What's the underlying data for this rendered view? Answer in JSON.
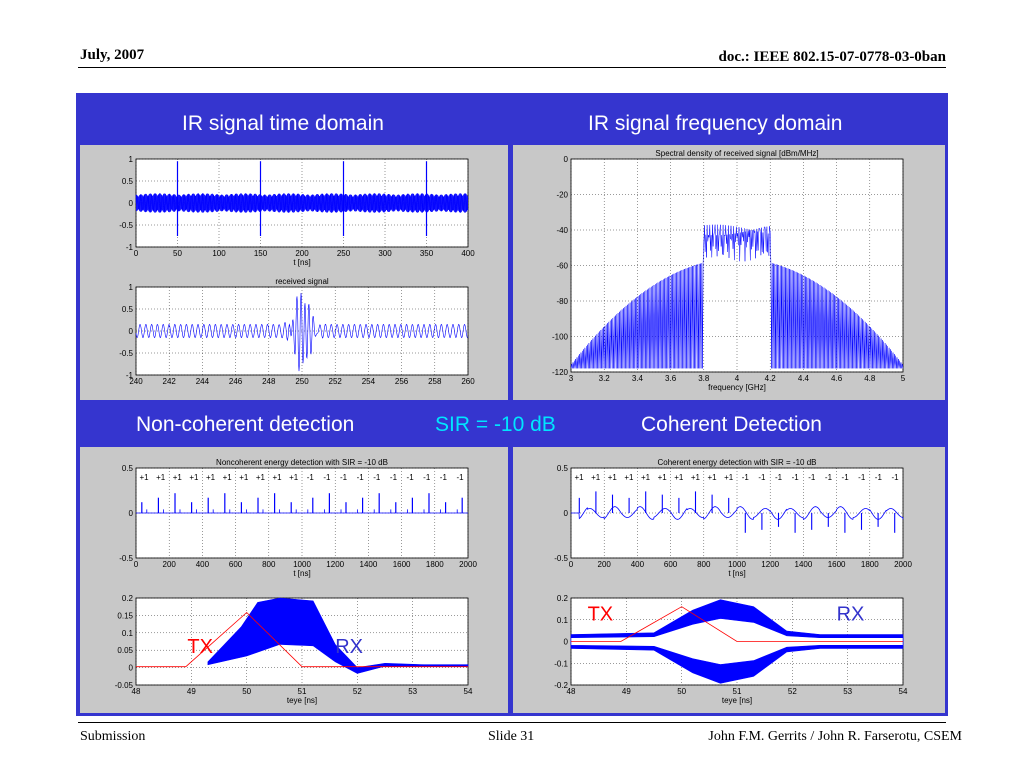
{
  "slide": {
    "header_left": "July, 2007",
    "header_right": "doc.: IEEE 802.15-07-0778-03-0ban",
    "footer_left": "Submission",
    "footer_center": "Slide 31",
    "footer_right": "John F.M. Gerrits / John R. Farserotu, CSEM"
  },
  "captions": {
    "time_domain": "IR signal time domain",
    "freq_domain": "IR signal frequency domain",
    "noncoherent": "Non-coherent detection",
    "sir": "SIR = -10 dB",
    "coherent": "Coherent Detection"
  },
  "colors": {
    "panel": "#3535cf",
    "signal": "#0000ff",
    "tx": "#ff0000",
    "rx": "#3333cc",
    "sir": "#00e5ff"
  },
  "chart_data": [
    {
      "id": "time",
      "type": "line",
      "title": "",
      "xlabel": "t [ns]",
      "xlim": [
        0,
        400
      ],
      "ylim": [
        -1,
        1
      ],
      "xticks": [
        "0",
        "50",
        "100",
        "150",
        "200",
        "250",
        "300",
        "350",
        "400"
      ],
      "yticks": [
        "1",
        "0.5",
        "0",
        "-0.5",
        "-1"
      ],
      "series": [
        {
          "pulse_times_ns": [
            50,
            150,
            250,
            350
          ],
          "pulse_amplitude": 1,
          "interference_amplitude": 0.22
        }
      ]
    },
    {
      "id": "received",
      "type": "line",
      "title": "received signal",
      "xlabel": "",
      "xlim": [
        240,
        260
      ],
      "ylim": [
        -1,
        1
      ],
      "xticks": [
        "240",
        "242",
        "244",
        "246",
        "248",
        "250",
        "252",
        "254",
        "256",
        "258",
        "260"
      ],
      "yticks": [
        "1",
        "0.5",
        "0",
        "-0.5",
        "-1"
      ],
      "series": [
        {
          "pulse_center_ns": 250,
          "pulse_amplitude": 0.85,
          "interference_amplitude": 0.15
        }
      ]
    },
    {
      "id": "spectrum",
      "type": "line",
      "title": "Spectral density of received signal [dBm/MHz]",
      "xlabel": "frequency [GHz]",
      "xlim": [
        3,
        5
      ],
      "ylim": [
        -120,
        0
      ],
      "xticks": [
        "3",
        "3.2",
        "3.4",
        "3.6",
        "3.8",
        "4",
        "4.2",
        "4.4",
        "4.6",
        "4.8",
        "5"
      ],
      "yticks": [
        "0",
        "-20",
        "-40",
        "-60",
        "-80",
        "-100",
        "-120"
      ],
      "series": [
        {
          "band_ghz": [
            3.8,
            4.2
          ],
          "band_level_dbm": -40,
          "sidelobe_peak_dbm": -56
        }
      ]
    },
    {
      "id": "noncoherent",
      "type": "line",
      "title": "Noncoherent energy detection with SIR = -10 dB",
      "xlabel": "t [ns]",
      "xlim": [
        0,
        2000
      ],
      "ylim": [
        -0.5,
        0.5
      ],
      "xticks": [
        "0",
        "200",
        "400",
        "600",
        "800",
        "1000",
        "1200",
        "1400",
        "1600",
        "1800",
        "2000"
      ],
      "yticks": [
        "0.5",
        "0",
        "-0.5"
      ],
      "symbols": [
        "+1",
        "+1",
        "+1",
        "+1",
        "+1",
        "+1",
        "+1",
        "+1",
        "+1",
        "+1",
        "-1",
        "-1",
        "-1",
        "-1",
        "-1",
        "-1",
        "-1",
        "-1",
        "-1",
        "-1"
      ]
    },
    {
      "id": "coherent",
      "type": "line",
      "title": "Coherent energy detection with SIR = -10 dB",
      "xlabel": "t [ns]",
      "xlim": [
        0,
        2000
      ],
      "ylim": [
        -0.5,
        0.5
      ],
      "xticks": [
        "0",
        "200",
        "400",
        "600",
        "800",
        "1000",
        "1200",
        "1400",
        "1600",
        "1800",
        "2000"
      ],
      "yticks": [
        "0.5",
        "0",
        "-0.5"
      ],
      "symbols": [
        "+1",
        "+1",
        "+1",
        "+1",
        "+1",
        "+1",
        "+1",
        "+1",
        "+1",
        "+1",
        "-1",
        "-1",
        "-1",
        "-1",
        "-1",
        "-1",
        "-1",
        "-1",
        "-1",
        "-1"
      ]
    },
    {
      "id": "eye_nc",
      "type": "line",
      "title": "",
      "xlabel": "teye [ns]",
      "xlim": [
        48,
        54
      ],
      "ylim": [
        -0.05,
        0.25
      ],
      "xticks": [
        "48",
        "49",
        "50",
        "51",
        "52",
        "53",
        "54"
      ],
      "yticks": [
        "0.2",
        "0.15",
        "0.1",
        "0.05",
        "0",
        "-0.05"
      ],
      "tx_label": "TX",
      "rx_label": "RX",
      "tx_points": [
        [
          48,
          0.013
        ],
        [
          48.9,
          0.013
        ],
        [
          50,
          0.2
        ],
        [
          51,
          0.013
        ],
        [
          54,
          0.013
        ]
      ],
      "envelope_upper": [
        [
          49.3,
          0.03
        ],
        [
          49.9,
          0.15
        ],
        [
          50.2,
          0.235
        ],
        [
          50.6,
          0.25
        ],
        [
          51.2,
          0.24
        ],
        [
          51.6,
          0.09
        ],
        [
          52,
          0.01
        ],
        [
          52.5,
          0.025
        ],
        [
          53.2,
          0.02
        ],
        [
          54,
          0.02
        ]
      ],
      "envelope_lower": [
        [
          49.3,
          0.02
        ],
        [
          50,
          0.05
        ],
        [
          50.6,
          0.09
        ],
        [
          51.2,
          0.085
        ],
        [
          51.6,
          0.03
        ],
        [
          52,
          -0.01
        ],
        [
          52.5,
          0.015
        ],
        [
          53.2,
          0.015
        ],
        [
          54,
          0.015
        ]
      ]
    },
    {
      "id": "eye_c",
      "type": "line",
      "title": "",
      "xlabel": "teye [ns]",
      "xlim": [
        48,
        54
      ],
      "ylim": [
        -0.25,
        0.25
      ],
      "xticks": [
        "48",
        "49",
        "50",
        "51",
        "52",
        "53",
        "54"
      ],
      "yticks": [
        "0.2",
        "0.1",
        "0",
        "-0.1",
        "-0.2"
      ],
      "tx_label": "TX",
      "rx_label": "RX",
      "tx_points": [
        [
          48,
          0
        ],
        [
          48.9,
          0
        ],
        [
          50,
          0.2
        ],
        [
          51,
          0
        ],
        [
          54,
          0
        ]
      ],
      "envelope_upper": [
        [
          48,
          0.04
        ],
        [
          49.5,
          0.05
        ],
        [
          50.2,
          0.18
        ],
        [
          50.7,
          0.24
        ],
        [
          51.3,
          0.2
        ],
        [
          51.9,
          0.06
        ],
        [
          52.5,
          0.04
        ],
        [
          54,
          0.04
        ]
      ],
      "envelope_lower": [
        [
          48,
          -0.04
        ],
        [
          49.5,
          -0.05
        ],
        [
          50.2,
          -0.18
        ],
        [
          50.7,
          -0.24
        ],
        [
          51.3,
          -0.2
        ],
        [
          51.9,
          -0.06
        ],
        [
          52.5,
          -0.04
        ],
        [
          54,
          -0.04
        ]
      ]
    }
  ]
}
